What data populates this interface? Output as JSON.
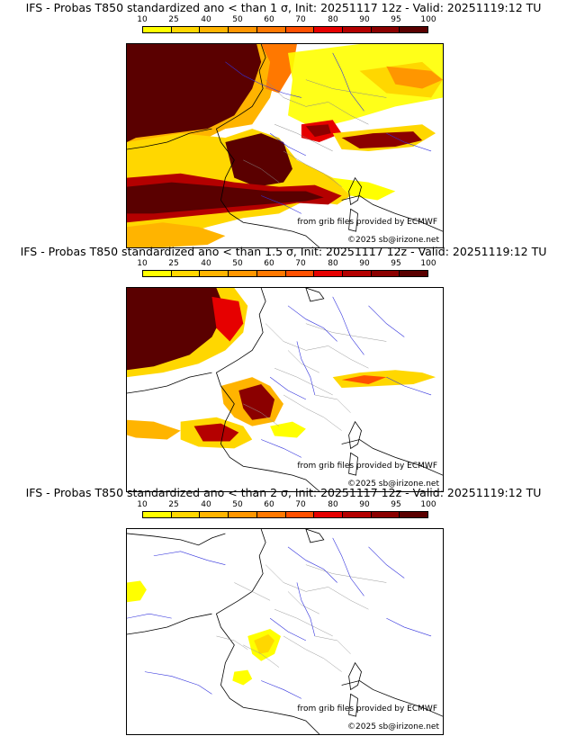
{
  "colorbar": {
    "ticks": [
      "10",
      "25",
      "40",
      "50",
      "60",
      "70",
      "80",
      "90",
      "95",
      "100"
    ],
    "colors": [
      "#ffff00",
      "#ffd700",
      "#ffb400",
      "#ff9600",
      "#ff7800",
      "#ff5000",
      "#e60000",
      "#b40000",
      "#8b0000",
      "#5a0000"
    ]
  },
  "credits": {
    "grib": "from grib files provided by ECMWF",
    "copyright": "©2025 sb@irizone.net"
  },
  "panels": [
    {
      "title": "IFS - Probas T850  standardized ano < than 1 σ, Init: 20251117 12z - Valid: 20251119:12 TU",
      "threshold": "1 σ"
    },
    {
      "title": "IFS - Probas T850  standardized ano < than 1.5 σ, Init: 20251117 12z - Valid: 20251119:12 TU",
      "threshold": "1.5 σ"
    },
    {
      "title": "IFS - Probas T850  standardized ano < than 2 σ, Init: 20251117 12z - Valid: 20251119:12 TU",
      "threshold": "2 σ"
    }
  ]
}
